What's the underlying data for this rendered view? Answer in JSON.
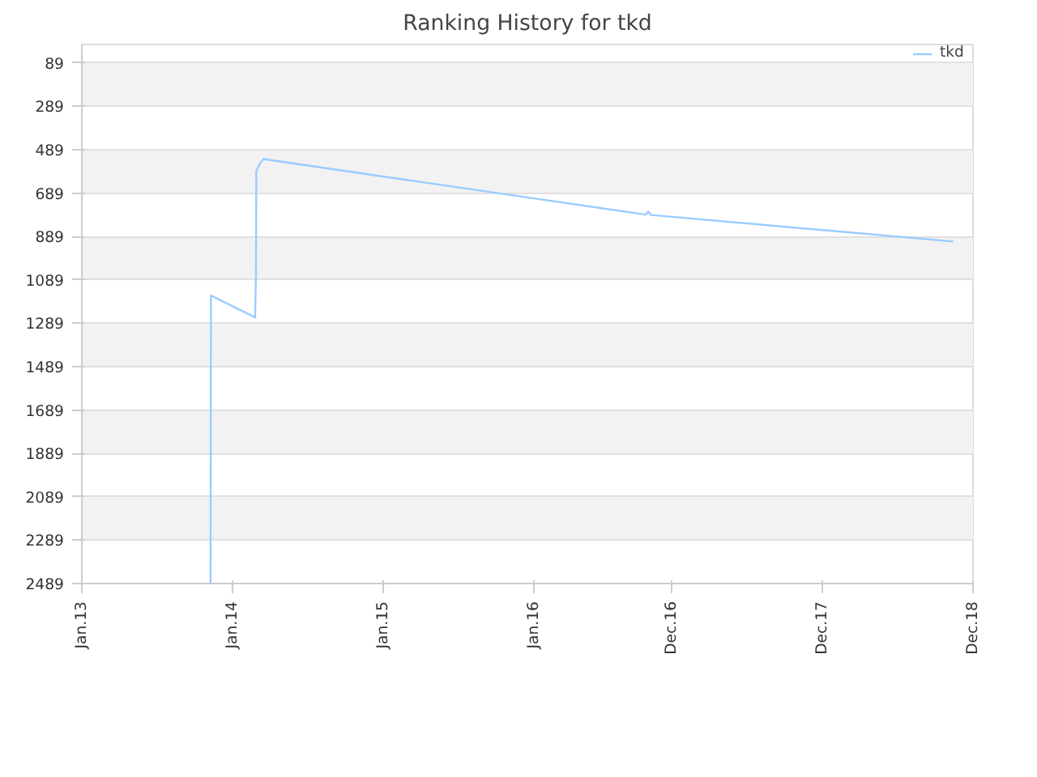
{
  "chart_data": {
    "type": "line",
    "title": "Ranking History for tkd",
    "series": [
      {
        "name": "tkd",
        "color": "#99ccff",
        "x": [
          "2013-11-09",
          "2013-11-10",
          "2014-02-25",
          "2014-02-27",
          "2014-02-28",
          "2014-03-08",
          "2014-03-17",
          "2016-09-28",
          "2016-10-05",
          "2016-10-12",
          "2018-10-14"
        ],
        "values": [
          2489,
          1161,
          1262,
          1075,
          586,
          555,
          532,
          788,
          775,
          790,
          912
        ]
      }
    ],
    "xlim": [
      "2013-01-01",
      "2018-12-01"
    ],
    "xticks": [
      {
        "value": "2013-01-01",
        "label": "Jan.13"
      },
      {
        "value": "2014-01-01",
        "label": "Jan.14"
      },
      {
        "value": "2015-01-01",
        "label": "Jan.15"
      },
      {
        "value": "2016-01-01",
        "label": "Jan.16"
      },
      {
        "value": "2016-12-01",
        "label": "Dec.16"
      },
      {
        "value": "2017-12-01",
        "label": "Dec.17"
      },
      {
        "value": "2018-12-01",
        "label": "Dec.18"
      }
    ],
    "ylim": [
      2489,
      4
    ],
    "yticks": [
      89,
      289,
      489,
      689,
      889,
      1089,
      1289,
      1489,
      1689,
      1889,
      2089,
      2289,
      2489
    ],
    "grid": "y",
    "legend": "top right",
    "marker": "none",
    "line_style": "solid"
  }
}
